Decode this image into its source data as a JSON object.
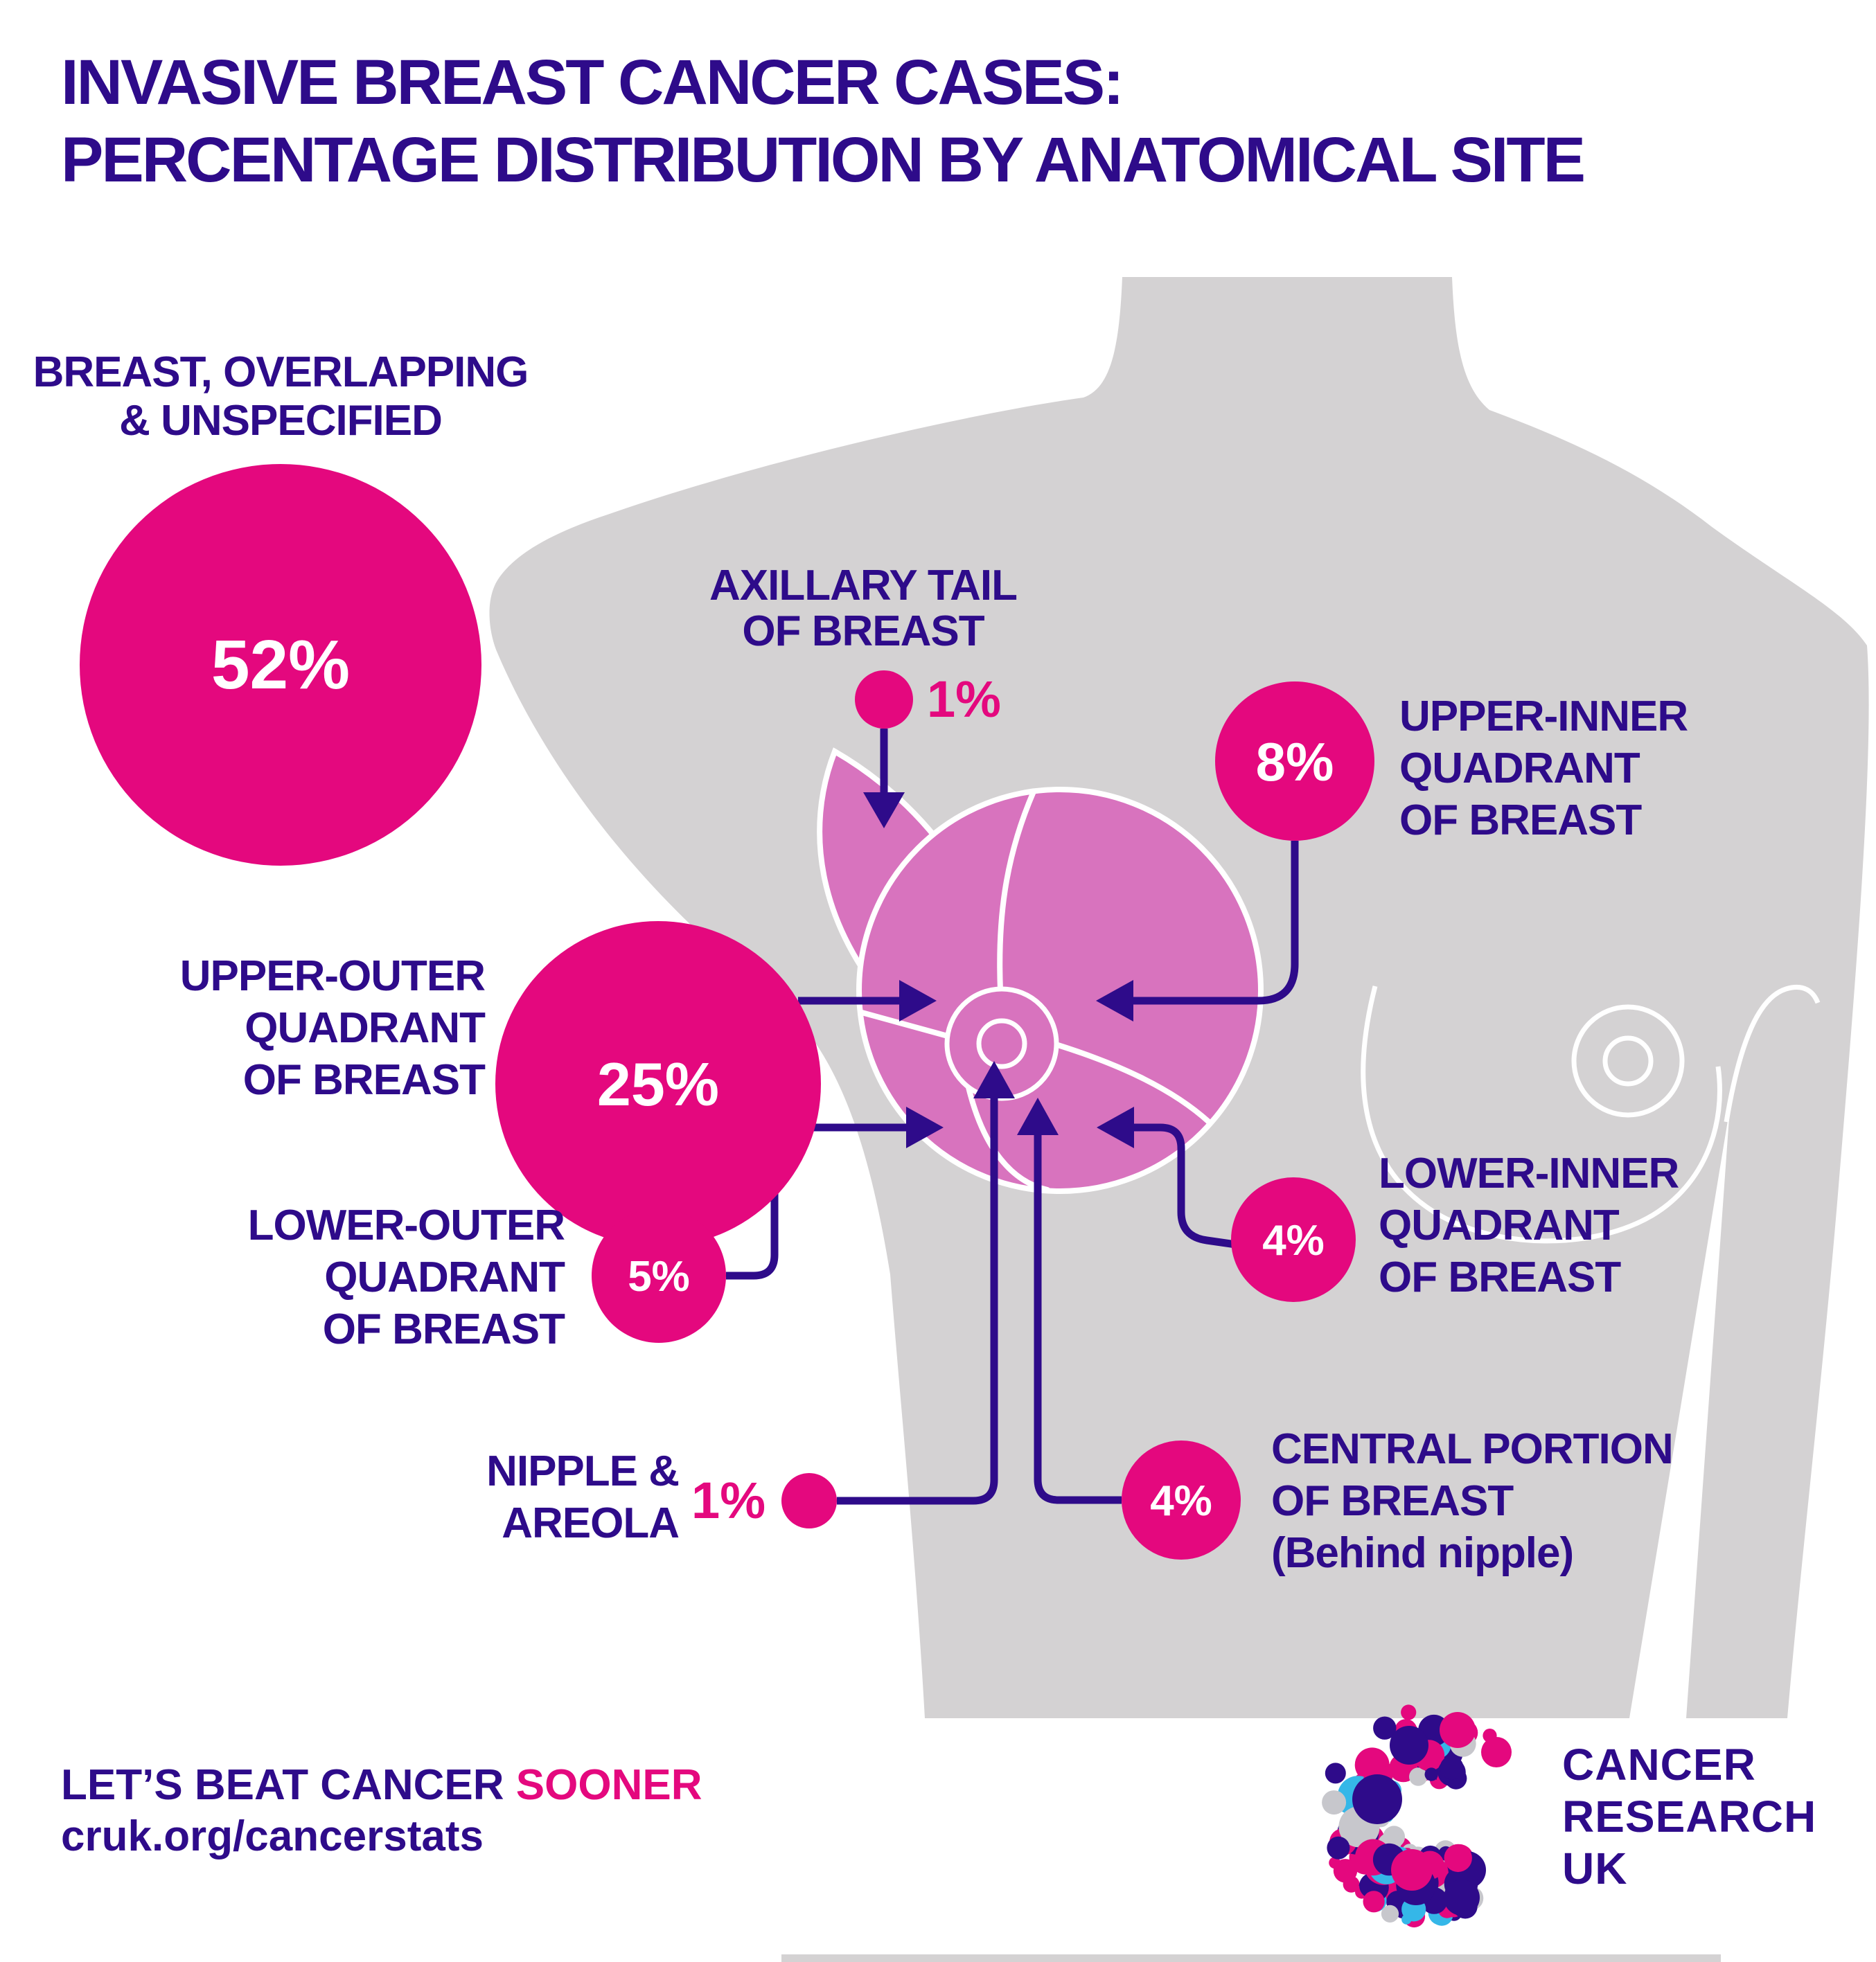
{
  "title": {
    "line1": "INVASIVE BREAST CANCER CASES:",
    "line2": "PERCENTAGE DISTRIBUTION BY ANATOMICAL SITE"
  },
  "chart_data": {
    "type": "pie",
    "title": "Invasive breast cancer cases: percentage distribution by anatomical site",
    "unit": "%",
    "categories": [
      "Breast, overlapping & unspecified",
      "Upper-outer quadrant of breast",
      "Upper-inner quadrant of breast",
      "Lower-outer quadrant of breast",
      "Lower-inner quadrant of breast",
      "Central portion of breast (behind nipple)",
      "Axillary tail of breast",
      "Nipple & areola"
    ],
    "values": [
      52,
      25,
      8,
      5,
      4,
      4,
      1,
      1
    ],
    "legend_position": "labels-on-diagram",
    "notes": "Percentages drawn as proportional-area circles connected by arrows to regions of an anatomical torso diagram"
  },
  "sites": [
    {
      "name": "Breast, overlapping & unspecified",
      "value": "52%",
      "label_lines": [
        "BREAST, OVERLAPPING",
        "& UNSPECIFIED"
      ]
    },
    {
      "name": "Axillary tail of breast",
      "value": "1%",
      "label_lines": [
        "AXILLARY TAIL",
        "OF BREAST"
      ]
    },
    {
      "name": "Upper-inner quadrant of breast",
      "value": "8%",
      "label_lines": [
        "UPPER-INNER",
        "QUADRANT",
        "OF BREAST"
      ]
    },
    {
      "name": "Upper-outer quadrant of breast",
      "value": "25%",
      "label_lines": [
        "UPPER-OUTER",
        "QUADRANT",
        "OF BREAST"
      ]
    },
    {
      "name": "Lower-outer quadrant of breast",
      "value": "5%",
      "label_lines": [
        "LOWER-OUTER",
        "QUADRANT",
        "OF BREAST"
      ]
    },
    {
      "name": "Lower-inner quadrant of breast",
      "value": "4%",
      "label_lines": [
        "LOWER-INNER",
        "QUADRANT",
        "OF BREAST"
      ]
    },
    {
      "name": "Central portion of breast (behind nipple)",
      "value": "4%",
      "label_lines": [
        "CENTRAL PORTION",
        "OF BREAST",
        "(Behind nipple)"
      ]
    },
    {
      "name": "Nipple & areola",
      "value": "1%",
      "label_lines": [
        "NIPPLE &",
        "AREOLA"
      ]
    }
  ],
  "footer": {
    "tagline_main": "LET’S BEAT CANCER ",
    "tagline_accent": "SOONER",
    "url": "cruk.org/cancerstats"
  },
  "logo": {
    "line1": "CANCER",
    "line2": "RESEARCH",
    "line3": "UK"
  },
  "colors": {
    "accent_pink": "#E4087E",
    "brand_purple": "#2E0B8A",
    "breast_pink": "#D873BE",
    "torso_grey": "#D4D2D3",
    "logo_blue": "#35B7E8",
    "logo_grey": "#C7C7CC"
  }
}
